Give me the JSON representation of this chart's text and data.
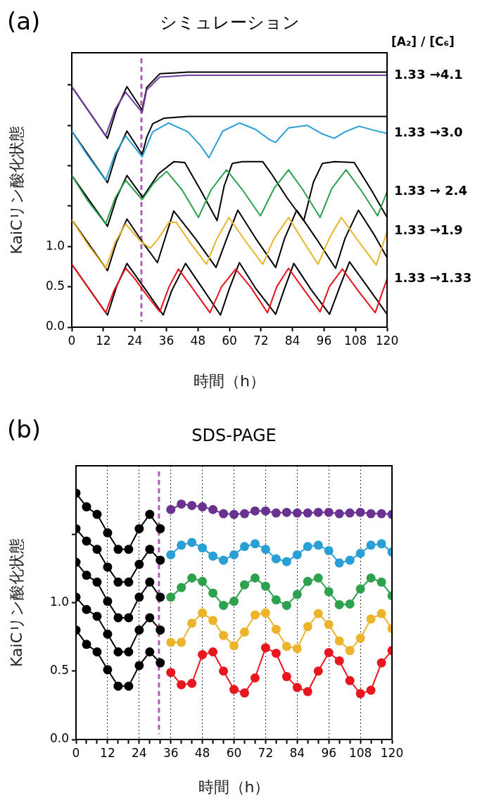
{
  "chart_data": [
    {
      "type": "line",
      "title": "シミュレーション",
      "xlabel": "時間（h）",
      "ylabel": "KaiCリン酸化状態",
      "legend_title": "[A₂] / [C₆]",
      "annotations": [
        "(a)"
      ],
      "marker": "none",
      "line_style": "solid",
      "legend": false,
      "xlim": [
        0,
        120
      ],
      "ylim": [
        0,
        3.4
      ],
      "xticks": [
        0,
        12,
        24,
        36,
        48,
        60,
        72,
        84,
        96,
        108,
        120
      ],
      "yticks": [
        {
          "value": 0,
          "label": "0.0"
        },
        {
          "value": 0.5,
          "label": "0.5"
        },
        {
          "value": 1,
          "label": "1.0"
        },
        {
          "value": 1.5,
          "label": null
        },
        {
          "value": 2,
          "label": null
        },
        {
          "value": 2.5,
          "label": null
        },
        {
          "value": 3,
          "label": null
        }
      ],
      "ref_lines": [
        {
          "axis": "x",
          "value": 26.5,
          "color": "#b060b0",
          "line_style": "dashed"
        }
      ],
      "series": [
        {
          "name": "1.33 →4.1",
          "color": "#7040a0",
          "x": [
            0,
            12.9,
            16.5,
            20.5,
            26.8,
            28.5,
            33.5,
            44.2,
            60,
            80,
            100,
            120
          ],
          "values": [
            2.98,
            2.37,
            2.7,
            2.91,
            2.66,
            2.94,
            3.1,
            3.12,
            3.12,
            3.12,
            3.12,
            3.12
          ]
        },
        {
          "color": "#000000",
          "x": [
            0,
            13.6,
            17,
            21,
            26.8,
            28.5,
            33.5,
            44.2,
            60,
            80,
            100,
            120
          ],
          "values": [
            2.98,
            2.34,
            2.7,
            2.98,
            2.69,
            2.97,
            3.14,
            3.16,
            3.16,
            3.16,
            3.16,
            3.16
          ]
        },
        {
          "name": "1.33 →3.0",
          "color": "#2a9fd6",
          "x": [
            0,
            6,
            12.9,
            16.5,
            20.5,
            26.8,
            30.8,
            36.8,
            44.2,
            49,
            52.2,
            57.5,
            63.8,
            70,
            75.4,
            77.6,
            82.5,
            89.6,
            95,
            99.9,
            104,
            109.3,
            115,
            120
          ],
          "values": [
            2.43,
            2.13,
            1.82,
            2.15,
            2.37,
            2.11,
            2.42,
            2.53,
            2.42,
            2.25,
            2.1,
            2.43,
            2.53,
            2.45,
            2.32,
            2.29,
            2.47,
            2.5,
            2.4,
            2.34,
            2.42,
            2.49,
            2.44,
            2.4
          ]
        },
        {
          "color": "#000000",
          "x": [
            0,
            13.6,
            17,
            21,
            26.8,
            28.5,
            30.8,
            35.2,
            44.2,
            60,
            80,
            100,
            120
          ],
          "values": [
            2.43,
            1.79,
            2.15,
            2.43,
            2.14,
            2.35,
            2.52,
            2.59,
            2.61,
            2.61,
            2.61,
            2.61,
            2.61
          ]
        },
        {
          "name": "1.33 → 2.4",
          "color": "#2ca04c",
          "x": [
            0,
            6,
            12.9,
            16.5,
            20.5,
            26.8,
            31,
            36.1,
            42,
            48.2,
            53,
            58.9,
            65,
            71.8,
            77,
            82.5,
            88,
            94.5,
            99,
            104.4,
            110,
            116.4,
            120
          ],
          "values": [
            1.88,
            1.57,
            1.28,
            1.6,
            1.82,
            1.58,
            1.78,
            1.93,
            1.7,
            1.36,
            1.7,
            1.95,
            1.7,
            1.38,
            1.72,
            1.95,
            1.7,
            1.36,
            1.72,
            1.95,
            1.7,
            1.38,
            1.68
          ]
        },
        {
          "color": "#000000",
          "x": [
            0,
            13.6,
            17,
            21,
            27,
            33,
            38.8,
            43,
            49,
            55.3,
            58,
            61.1,
            65,
            72.7,
            76,
            82,
            88.3,
            92,
            95.4,
            100,
            107.5,
            114,
            120
          ],
          "values": [
            1.88,
            1.25,
            1.6,
            1.88,
            1.61,
            1.9,
            2.05,
            2.04,
            1.7,
            1.32,
            1.75,
            2.03,
            2.05,
            2.05,
            1.9,
            1.6,
            1.32,
            1.8,
            2.03,
            2.05,
            2.04,
            1.7,
            1.36
          ]
        },
        {
          "name": "1.33 →1.9",
          "color": "#e8b428",
          "x": [
            0,
            6,
            12.9,
            16.5,
            20.5,
            26.3,
            29.9,
            33,
            37,
            39.7,
            45,
            51.3,
            55,
            59.8,
            66,
            72.7,
            77,
            82.5,
            88,
            93.7,
            98,
            102.6,
            109,
            115.9,
            120
          ],
          "values": [
            1.33,
            1.03,
            0.73,
            1.05,
            1.28,
            1.06,
            0.98,
            1.1,
            1.3,
            1.3,
            1.05,
            0.78,
            1.08,
            1.36,
            1.07,
            0.78,
            1.1,
            1.36,
            1.07,
            0.78,
            1.1,
            1.36,
            1.07,
            0.77,
            1.19
          ]
        },
        {
          "color": "#000000",
          "x": [
            0,
            13.6,
            17,
            21,
            27,
            32.6,
            35.5,
            38.8,
            47,
            54.9,
            59,
            63.2,
            70,
            77.6,
            81,
            85.6,
            93,
            100.4,
            104,
            109.1,
            115,
            120
          ],
          "values": [
            1.33,
            0.7,
            1.05,
            1.34,
            1.05,
            0.8,
            1.1,
            1.44,
            1.1,
            0.74,
            1.1,
            1.45,
            1.1,
            0.74,
            1.1,
            1.45,
            1.1,
            0.73,
            1.1,
            1.45,
            1.15,
            0.86
          ]
        },
        {
          "name": "1.33 →1.33",
          "color": "#e8141c",
          "x": [
            0,
            6,
            12.9,
            16,
            20.5,
            24,
            28,
            33.5,
            37,
            40.6,
            46,
            52.6,
            57,
            62.4,
            68,
            74.5,
            78,
            82.5,
            88,
            94.5,
            98,
            103,
            109,
            115.5,
            120
          ],
          "values": [
            0.78,
            0.5,
            0.18,
            0.45,
            0.73,
            0.6,
            0.42,
            0.19,
            0.5,
            0.72,
            0.48,
            0.18,
            0.5,
            0.72,
            0.5,
            0.18,
            0.5,
            0.73,
            0.48,
            0.19,
            0.5,
            0.72,
            0.45,
            0.18,
            0.6
          ]
        },
        {
          "color": "#000000",
          "x": [
            0,
            13.6,
            17,
            21,
            28,
            34.8,
            38,
            43.3,
            50,
            56.6,
            60,
            63.8,
            70,
            77.6,
            81,
            84.5,
            91,
            98.1,
            102,
            105.7,
            113,
            120
          ],
          "values": [
            0.78,
            0.15,
            0.5,
            0.79,
            0.47,
            0.15,
            0.45,
            0.79,
            0.47,
            0.15,
            0.48,
            0.8,
            0.48,
            0.16,
            0.48,
            0.79,
            0.47,
            0.16,
            0.5,
            0.81,
            0.48,
            0.16
          ]
        }
      ]
    },
    {
      "type": "line",
      "title": "SDS-PAGE",
      "xlabel": "時間（h）",
      "ylabel": "KaiCリン酸化状態",
      "annotations": [
        "(b)"
      ],
      "marker": "circle",
      "line_style": "solid",
      "legend": false,
      "grid": "x",
      "xlim": [
        0,
        120
      ],
      "ylim": [
        0,
        2
      ],
      "xticks": [
        0,
        {
          "value": 4,
          "label": null
        },
        {
          "value": 8,
          "label": null
        },
        12,
        {
          "value": 16,
          "label": null
        },
        {
          "value": 20,
          "label": null
        },
        24,
        {
          "value": 28,
          "label": null
        },
        {
          "value": 32,
          "label": null
        },
        36,
        {
          "value": 40,
          "label": null
        },
        {
          "value": 44,
          "label": null
        },
        48,
        {
          "value": 52,
          "label": null
        },
        {
          "value": 56,
          "label": null
        },
        60,
        {
          "value": 64,
          "label": null
        },
        {
          "value": 68,
          "label": null
        },
        72,
        {
          "value": 76,
          "label": null
        },
        {
          "value": 80,
          "label": null
        },
        84,
        {
          "value": 88,
          "label": null
        },
        {
          "value": 92,
          "label": null
        },
        96,
        {
          "value": 100,
          "label": null
        },
        {
          "value": 104,
          "label": null
        },
        108,
        {
          "value": 112,
          "label": null
        },
        {
          "value": 116,
          "label": null
        },
        120
      ],
      "yticks": [
        {
          "value": 0,
          "label": "0.0"
        },
        {
          "value": 0.5,
          "label": "0.5"
        },
        {
          "value": 1,
          "label": "1.0"
        },
        {
          "value": 1.5,
          "label": null
        }
      ],
      "ref_lines": [
        {
          "axis": "x",
          "value": 31.5,
          "color": "#b060b0",
          "line_style": "dashed"
        }
      ],
      "series": [
        {
          "color": "#000000",
          "x": [
            0,
            4,
            8,
            12,
            16,
            20,
            24,
            28,
            32
          ],
          "values": [
            1.8,
            1.7,
            1.645,
            1.51,
            1.39,
            1.39,
            1.54,
            1.645,
            1.54
          ]
        },
        {
          "color": "#000000",
          "x": [
            0,
            4,
            8,
            12,
            16,
            20,
            24,
            28,
            32
          ],
          "values": [
            1.54,
            1.45,
            1.39,
            1.26,
            1.15,
            1.15,
            1.28,
            1.39,
            1.31
          ]
        },
        {
          "color": "#000000",
          "x": [
            0,
            4,
            8,
            12,
            16,
            20,
            24,
            28,
            32
          ],
          "values": [
            1.295,
            1.2,
            1.15,
            1.01,
            0.89,
            0.89,
            1.04,
            1.15,
            1.04
          ]
        },
        {
          "color": "#000000",
          "x": [
            0,
            4,
            8,
            12,
            16,
            20,
            24,
            28,
            32
          ],
          "values": [
            1.04,
            0.95,
            0.9,
            0.77,
            0.64,
            0.64,
            0.8,
            0.89,
            0.8
          ]
        },
        {
          "color": "#000000",
          "x": [
            0,
            4,
            8,
            12,
            16,
            20,
            24,
            28,
            32
          ],
          "values": [
            0.8,
            0.695,
            0.64,
            0.51,
            0.39,
            0.39,
            0.54,
            0.64,
            0.56
          ]
        },
        {
          "color": "#6a3290",
          "x": [
            36,
            40,
            44,
            48,
            52,
            56,
            60,
            64,
            68,
            72,
            76,
            80,
            84,
            88,
            92,
            96,
            100,
            104,
            108,
            112,
            116,
            120
          ],
          "values": [
            1.68,
            1.72,
            1.71,
            1.7,
            1.68,
            1.65,
            1.645,
            1.65,
            1.67,
            1.67,
            1.655,
            1.66,
            1.655,
            1.655,
            1.66,
            1.66,
            1.65,
            1.655,
            1.66,
            1.65,
            1.65,
            1.645
          ]
        },
        {
          "color": "#2a9fd6",
          "x": [
            36,
            40,
            44,
            48,
            52,
            56,
            60,
            64,
            68,
            72,
            76,
            80,
            84,
            88,
            92,
            96,
            100,
            104,
            108,
            112,
            116,
            120
          ],
          "values": [
            1.35,
            1.42,
            1.44,
            1.4,
            1.34,
            1.31,
            1.35,
            1.41,
            1.43,
            1.39,
            1.32,
            1.3,
            1.35,
            1.41,
            1.42,
            1.38,
            1.29,
            1.31,
            1.36,
            1.42,
            1.43,
            1.37
          ]
        },
        {
          "color": "#2ea14f",
          "x": [
            36,
            40,
            44,
            48,
            52,
            56,
            60,
            64,
            68,
            72,
            76,
            80,
            84,
            88,
            92,
            96,
            100,
            104,
            108,
            112,
            116,
            120
          ],
          "values": [
            1.04,
            1.11,
            1.18,
            1.155,
            1.07,
            0.98,
            1.01,
            1.13,
            1.18,
            1.12,
            1.02,
            0.98,
            1.06,
            1.155,
            1.18,
            1.08,
            0.985,
            0.99,
            1.1,
            1.18,
            1.15,
            1.05
          ]
        },
        {
          "color": "#ebb42a",
          "x": [
            36,
            40,
            44,
            48,
            52,
            56,
            60,
            64,
            68,
            72,
            76,
            80,
            84,
            88,
            92,
            96,
            100,
            104,
            108,
            112,
            116,
            120
          ],
          "values": [
            0.71,
            0.71,
            0.85,
            0.925,
            0.87,
            0.76,
            0.685,
            0.785,
            0.91,
            0.925,
            0.805,
            0.68,
            0.665,
            0.825,
            0.92,
            0.84,
            0.72,
            0.65,
            0.74,
            0.88,
            0.92,
            0.81
          ]
        },
        {
          "color": "#e8161e",
          "x": [
            36,
            40,
            44,
            48,
            52,
            56,
            60,
            64,
            68,
            72,
            76,
            80,
            84,
            88,
            92,
            96,
            100,
            104,
            108,
            112,
            116,
            120
          ],
          "values": [
            0.49,
            0.4,
            0.41,
            0.62,
            0.64,
            0.5,
            0.365,
            0.34,
            0.45,
            0.67,
            0.63,
            0.46,
            0.38,
            0.35,
            0.5,
            0.635,
            0.575,
            0.43,
            0.335,
            0.36,
            0.56,
            0.65
          ]
        }
      ]
    }
  ]
}
